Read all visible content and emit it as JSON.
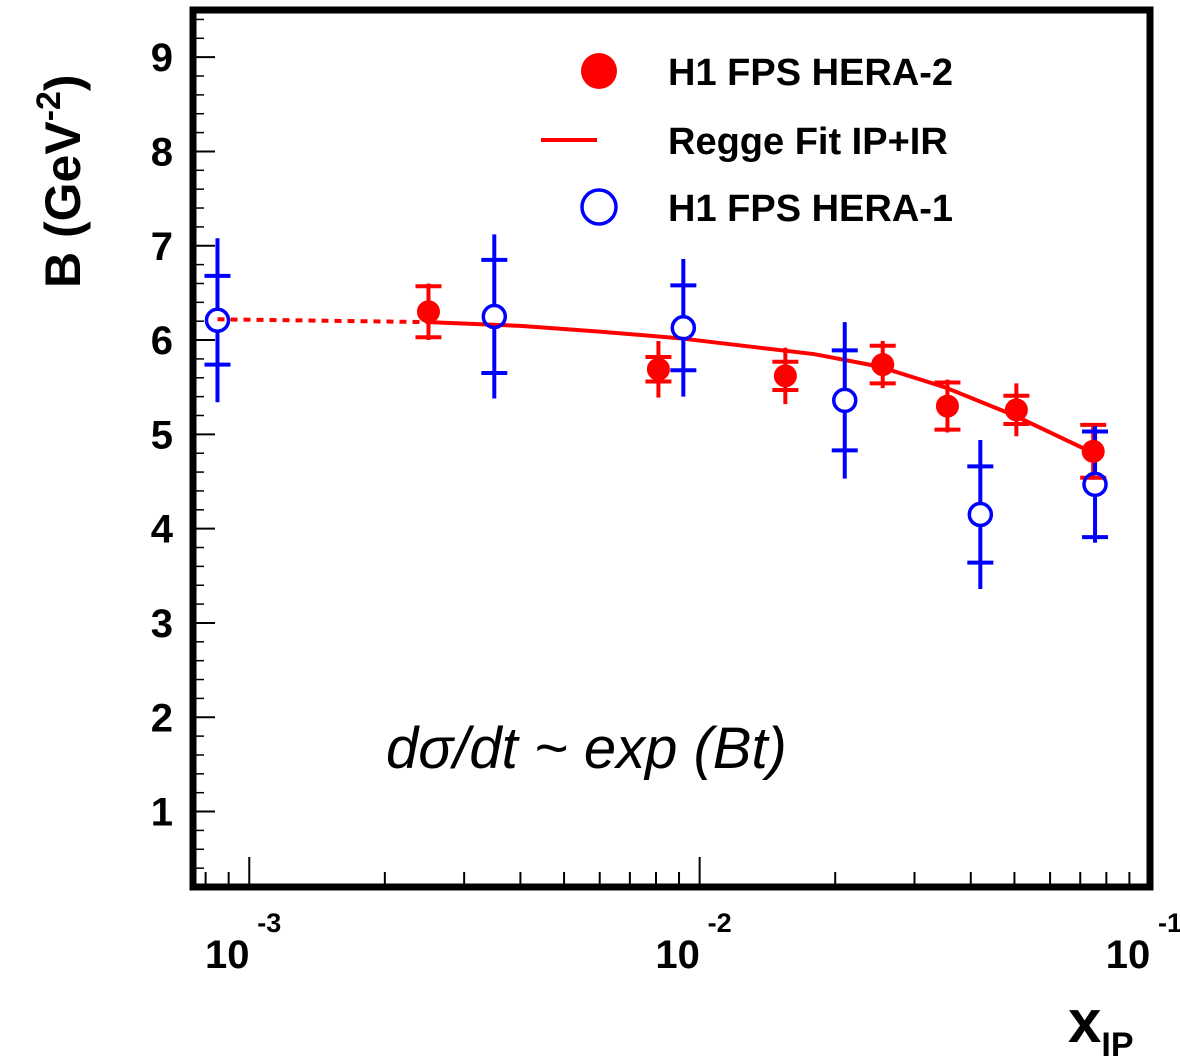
{
  "chart_data": {
    "type": "scatter",
    "title": "",
    "ylabel": {
      "base": "B (GeV",
      "superscript": "-2",
      "close": ")"
    },
    "xlabel": {
      "base": "x",
      "subscript": "IP"
    },
    "x_scale": "log",
    "xlim": [
      0.00075,
      0.1
    ],
    "ylim": [
      0.2,
      9.5
    ],
    "y_ticks": [
      1,
      2,
      3,
      4,
      5,
      6,
      7,
      8,
      9
    ],
    "y_tick_labels": [
      "1",
      "2",
      "3",
      "4",
      "5",
      "6",
      "7",
      "8",
      "9"
    ],
    "x_ticks": [
      {
        "value": 0.001,
        "base": "10",
        "exp": "-3"
      },
      {
        "value": 0.01,
        "base": "10",
        "exp": "-2"
      },
      {
        "value": 0.1,
        "base": "10",
        "exp": "-1"
      }
    ],
    "annotation": "dσ/dt ~ exp (Bt)",
    "legend_position": "top-right",
    "colors": {
      "hera2": "#ff0000",
      "hera1": "#0000ff",
      "fit": "#ff0000",
      "axis": "#000000"
    },
    "series": [
      {
        "name": "H1 FPS HERA-2",
        "marker": "filled-circle",
        "color": "#ff0000",
        "points": [
          {
            "x": 0.0025,
            "y": 6.3,
            "stat": 0.27,
            "tot": 0.3
          },
          {
            "x": 0.0081,
            "y": 5.69,
            "stat": 0.13,
            "tot": 0.3
          },
          {
            "x": 0.0155,
            "y": 5.62,
            "stat": 0.15,
            "tot": 0.3
          },
          {
            "x": 0.0255,
            "y": 5.74,
            "stat": 0.2,
            "tot": 0.25
          },
          {
            "x": 0.0355,
            "y": 5.3,
            "stat": 0.25,
            "tot": 0.28
          },
          {
            "x": 0.0505,
            "y": 5.26,
            "stat": 0.15,
            "tot": 0.28
          },
          {
            "x": 0.0748,
            "y": 4.82,
            "stat": 0.28,
            "tot": 0.3
          }
        ]
      },
      {
        "name": "Regge Fit IP+IR",
        "marker": "line",
        "color": "#ff0000",
        "dashed_until_x": 0.0024,
        "points": [
          {
            "x": 0.00085,
            "y": 6.22
          },
          {
            "x": 0.0025,
            "y": 6.19
          },
          {
            "x": 0.004,
            "y": 6.15
          },
          {
            "x": 0.006,
            "y": 6.09
          },
          {
            "x": 0.009,
            "y": 6.02
          },
          {
            "x": 0.013,
            "y": 5.93
          },
          {
            "x": 0.018,
            "y": 5.85
          },
          {
            "x": 0.025,
            "y": 5.72
          },
          {
            "x": 0.035,
            "y": 5.5
          },
          {
            "x": 0.05,
            "y": 5.2
          },
          {
            "x": 0.075,
            "y": 4.8
          }
        ]
      },
      {
        "name": "H1 FPS HERA-1",
        "marker": "open-circle",
        "color": "#0000ff",
        "points": [
          {
            "x": 0.00085,
            "y": 6.21,
            "stat": 0.47,
            "tot": 0.87
          },
          {
            "x": 0.0035,
            "y": 6.25,
            "stat": 0.6,
            "tot": 0.87
          },
          {
            "x": 0.0092,
            "y": 6.13,
            "stat": 0.45,
            "tot": 0.73
          },
          {
            "x": 0.021,
            "y": 5.36,
            "stat": 0.53,
            "tot": 0.83
          },
          {
            "x": 0.042,
            "y": 4.15,
            "stat": 0.51,
            "tot": 0.79
          },
          {
            "x": 0.0755,
            "y": 4.47,
            "stat": 0.56,
            "tot": 0.62
          }
        ]
      }
    ]
  }
}
